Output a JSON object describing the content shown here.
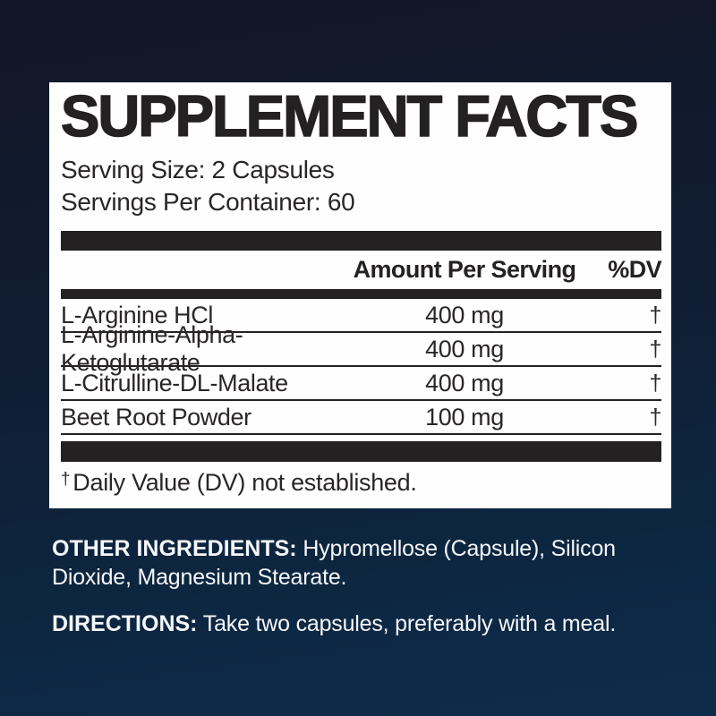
{
  "panel": {
    "title": "SUPPLEMENT FACTS",
    "serving_size": "Serving Size: 2 Capsules",
    "servings_per_container": "Servings Per Container: 60",
    "columns": {
      "amount": "Amount Per Serving",
      "dv": "%DV"
    },
    "rows": [
      {
        "name": "L-Arginine HCl",
        "amount": "400 mg",
        "dv": "†"
      },
      {
        "name": "L-Arginine-Alpha-Ketoglutarate",
        "amount": "400 mg",
        "dv": "†"
      },
      {
        "name": "L-Citrulline-DL-Malate",
        "amount": "400 mg",
        "dv": "†"
      },
      {
        "name": "Beet Root Powder",
        "amount": "100 mg",
        "dv": "†"
      }
    ],
    "footnote_symbol": "†",
    "footnote": "Daily Value (DV) not established."
  },
  "other_ingredients": {
    "label": "OTHER INGREDIENTS:",
    "text": "Hypromellose (Capsule), Silicon Dioxide, Magnesium Stearate."
  },
  "directions": {
    "label": "DIRECTIONS:",
    "text": "Take two capsules, preferably with a meal."
  },
  "colors": {
    "background_top": "#121626",
    "background_bottom": "#0e2c4b",
    "panel_background": "#fefefe",
    "ink": "#242122",
    "light_text": "#f5f7fa"
  }
}
